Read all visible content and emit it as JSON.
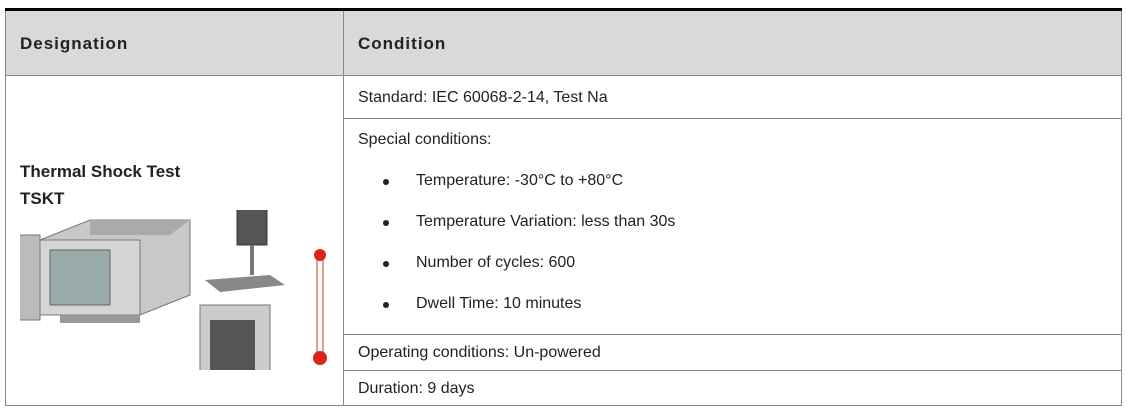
{
  "table": {
    "header": [
      "Designation",
      "Condition"
    ],
    "designation": {
      "title": "Thermal Shock Test",
      "code": "TSKT"
    },
    "conditions": {
      "standard": "Standard: IEC 60068-2-14, Test Na",
      "special": {
        "label": "Special conditions:",
        "items": [
          "Temperature: -30°C to +80°C",
          "Temperature Variation: less than 30s",
          "Number of cycles: 600",
          "Dwell Time: 10 minutes"
        ]
      },
      "operating": "Operating conditions: Un-powered",
      "duration": "Duration: 9 days"
    }
  }
}
